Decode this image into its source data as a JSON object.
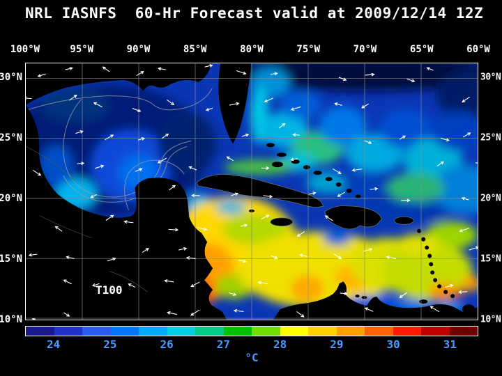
{
  "title": "NRL IASNFS  60-Hr Forecast valid at 2009/12/14 12Z",
  "map": {
    "depth_label": "T100",
    "top_axis_labels": [
      "100°W",
      "95°W",
      "90°W",
      "85°W",
      "80°W",
      "75°W",
      "70°W",
      "65°W",
      "60°W"
    ],
    "lat_labels": [
      "30°N",
      "25°N",
      "20°N",
      "15°N",
      "10°N"
    ]
  },
  "colorbar": {
    "colors": [
      "#1a1a8c",
      "#2233cc",
      "#2b5cf0",
      "#0077ff",
      "#00aaff",
      "#00d0e0",
      "#00cc88",
      "#00c000",
      "#70dd00",
      "#ffff00",
      "#ffd000",
      "#ffa000",
      "#ff6000",
      "#ff1a00",
      "#c00000",
      "#700000"
    ],
    "tick_labels": [
      "24",
      "25",
      "26",
      "27",
      "28",
      "29",
      "30",
      "31"
    ],
    "unit": "°C",
    "label_color": "#4a9aff"
  },
  "chart_data": {
    "type": "heatmap",
    "title": "NRL IASNFS 60-Hr Forecast valid at 2009/12/14 12Z",
    "variable": "T100",
    "x_ticks": [
      "100°W",
      "95°W",
      "90°W",
      "85°W",
      "80°W",
      "75°W",
      "70°W",
      "65°W",
      "60°W"
    ],
    "y_ticks": [
      "30°N",
      "25°N",
      "20°N",
      "15°N",
      "10°N"
    ],
    "colorbar_ticks": [
      24,
      25,
      26,
      27,
      28,
      29,
      30,
      31
    ],
    "colorbar_unit": "°C",
    "notes": "Ocean temperature heatmap of Gulf of Mexico, Caribbean and western Atlantic with white current vectors, gray graticule every 5 degrees, black land mask"
  }
}
